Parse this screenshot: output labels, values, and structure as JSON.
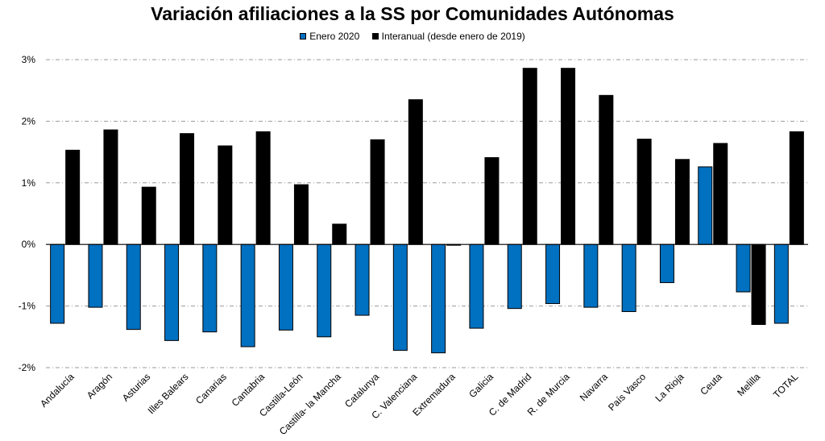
{
  "chart_data": {
    "type": "bar",
    "title": "Variación afiliaciones a la SS por Comunidades Autónomas",
    "categories": [
      "Andalucía",
      "Aragón",
      "Asturias",
      "Illes Balears",
      "Canarias",
      "Cantabria",
      "Castilla-León",
      "Castilla- la Mancha",
      "Catalunya",
      "C. Valenciana",
      "Extremadura",
      "Galicia",
      "C. de Madrid",
      "R. de Murcia",
      "Navarra",
      "País Vasco",
      "La Rioja",
      "Ceuta",
      "Melilla",
      "TOTAL"
    ],
    "series": [
      {
        "name": "Enero 2020",
        "color": "#0070c0",
        "values": [
          -1.28,
          -1.02,
          -1.38,
          -1.56,
          -1.42,
          -1.66,
          -1.39,
          -1.5,
          -1.15,
          -1.72,
          -1.76,
          -1.36,
          -1.04,
          -0.96,
          -1.02,
          -1.09,
          -0.62,
          1.26,
          -0.77,
          -1.28
        ]
      },
      {
        "name": "Interanual (desde enero de 2019)",
        "color": "#000000",
        "values": [
          1.53,
          1.86,
          0.93,
          1.8,
          1.6,
          1.83,
          0.97,
          0.33,
          1.7,
          2.35,
          -0.01,
          1.41,
          2.86,
          2.86,
          2.42,
          1.71,
          1.38,
          1.64,
          -1.3,
          1.83
        ]
      }
    ],
    "yticks": [
      "3%",
      "2%",
      "1%",
      "0%",
      "-1%",
      "-2%"
    ],
    "ytick_values": [
      3,
      2,
      1,
      0,
      -1,
      -2
    ],
    "ylim": [
      -2,
      3
    ],
    "grid": true,
    "legend_position": "top-center"
  }
}
